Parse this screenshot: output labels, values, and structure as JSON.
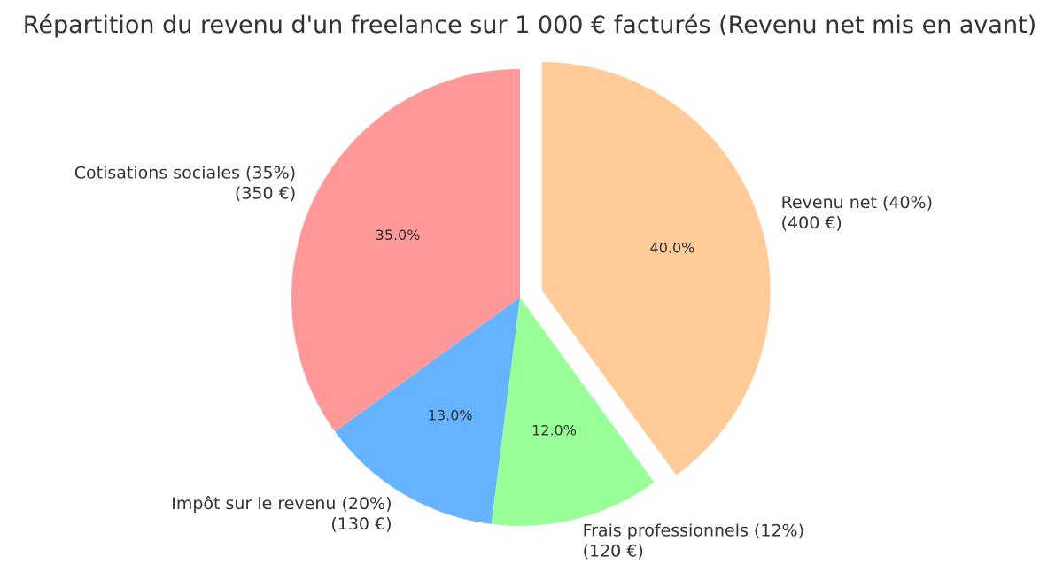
{
  "chart_data": {
    "type": "pie",
    "title": "Répartition du revenu d'un freelance sur 1 000 € facturés (Revenu net mis en avant)",
    "start_angle_deg": 90,
    "direction": "counterclockwise",
    "slices": [
      {
        "name": "Cotisations sociales",
        "value": 350,
        "percent": 35.0,
        "label_line1": "Cotisations sociales (35%)",
        "label_line2": "(350 €)",
        "pct_label": "35.0%",
        "color": "#ff9999",
        "exploded": false
      },
      {
        "name": "Impôt sur le revenu",
        "value": 130,
        "percent": 13.0,
        "label_line1": "Impôt sur le revenu (20%)",
        "label_line2": "(130 €)",
        "pct_label": "13.0%",
        "color": "#66b3ff",
        "exploded": false
      },
      {
        "name": "Frais professionnels",
        "value": 120,
        "percent": 12.0,
        "label_line1": "Frais professionnels (12%)",
        "label_line2": "(120 €)",
        "pct_label": "12.0%",
        "color": "#99ff99",
        "exploded": false
      },
      {
        "name": "Revenu net",
        "value": 400,
        "percent": 40.0,
        "label_line1": "Revenu net (40%)",
        "label_line2": "(400 €)",
        "pct_label": "40.0%",
        "color": "#ffcc99",
        "exploded": true
      }
    ]
  }
}
